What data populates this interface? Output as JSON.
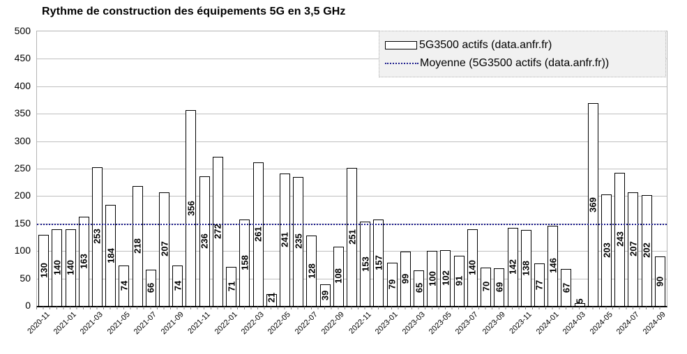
{
  "title": "Rythme de construction des équipements 5G en 3,5 GHz",
  "legend": {
    "bars_label": "5G3500 actifs (data.anfr.fr)",
    "mean_label": "Moyenne (5G3500 actifs (data.anfr.fr))"
  },
  "colors": {
    "bar_fill": "#ffffff",
    "bar_border": "#000000",
    "mean_line": "#1a1a8c",
    "grid": "#bfbfbf",
    "axis": "#000000",
    "legend_bg": "#f1f1f1"
  },
  "chart_data": {
    "type": "bar",
    "title": "Rythme de construction des équipements 5G en 3,5 GHz",
    "series_name": "5G3500 actifs (data.anfr.fr)",
    "x": [
      "2020-11",
      "2020-12",
      "2021-01",
      "2021-02",
      "2021-03",
      "2021-04",
      "2021-05",
      "2021-06",
      "2021-07",
      "2021-08",
      "2021-09",
      "2021-10",
      "2021-11",
      "2021-12",
      "2022-01",
      "2022-02",
      "2022-03",
      "2022-04",
      "2022-05",
      "2022-06",
      "2022-07",
      "2022-08",
      "2022-09",
      "2022-10",
      "2022-11",
      "2022-12",
      "2023-01",
      "2023-02",
      "2023-03",
      "2023-04",
      "2023-05",
      "2023-06",
      "2023-07",
      "2023-08",
      "2023-09",
      "2023-10",
      "2023-11",
      "2023-12",
      "2024-01",
      "2024-02",
      "2024-03",
      "2024-04",
      "2024-05",
      "2024-06",
      "2024-07",
      "2024-08",
      "2024-09"
    ],
    "values": [
      130,
      140,
      140,
      163,
      253,
      184,
      74,
      218,
      66,
      207,
      74,
      356,
      236,
      272,
      71,
      158,
      261,
      21,
      241,
      235,
      128,
      39,
      108,
      251,
      153,
      157,
      79,
      99,
      65,
      100,
      102,
      91,
      140,
      70,
      69,
      142,
      138,
      77,
      146,
      67,
      5,
      369,
      203,
      243,
      207,
      202,
      90
    ],
    "mean": 149.8,
    "mean_series_name": "Moyenne (5G3500 actifs (data.anfr.fr))",
    "ylim": [
      0,
      500
    ],
    "yticks": [
      0,
      50,
      100,
      150,
      200,
      250,
      300,
      350,
      400,
      450,
      500
    ],
    "xtick_labels": [
      "2020-11",
      "2021-01",
      "2021-03",
      "2021-05",
      "2021-07",
      "2021-09",
      "2021-11",
      "2022-01",
      "2022-03",
      "2022-05",
      "2022-07",
      "2022-09",
      "2022-11",
      "2023-01",
      "2023-03",
      "2023-05",
      "2023-07",
      "2023-09",
      "2023-11",
      "2024-01",
      "2024-03",
      "2024-05",
      "2024-07",
      "2024-09"
    ],
    "grid": "horizontal",
    "legend_position": "top-right",
    "bar_labels_rotated": true
  }
}
